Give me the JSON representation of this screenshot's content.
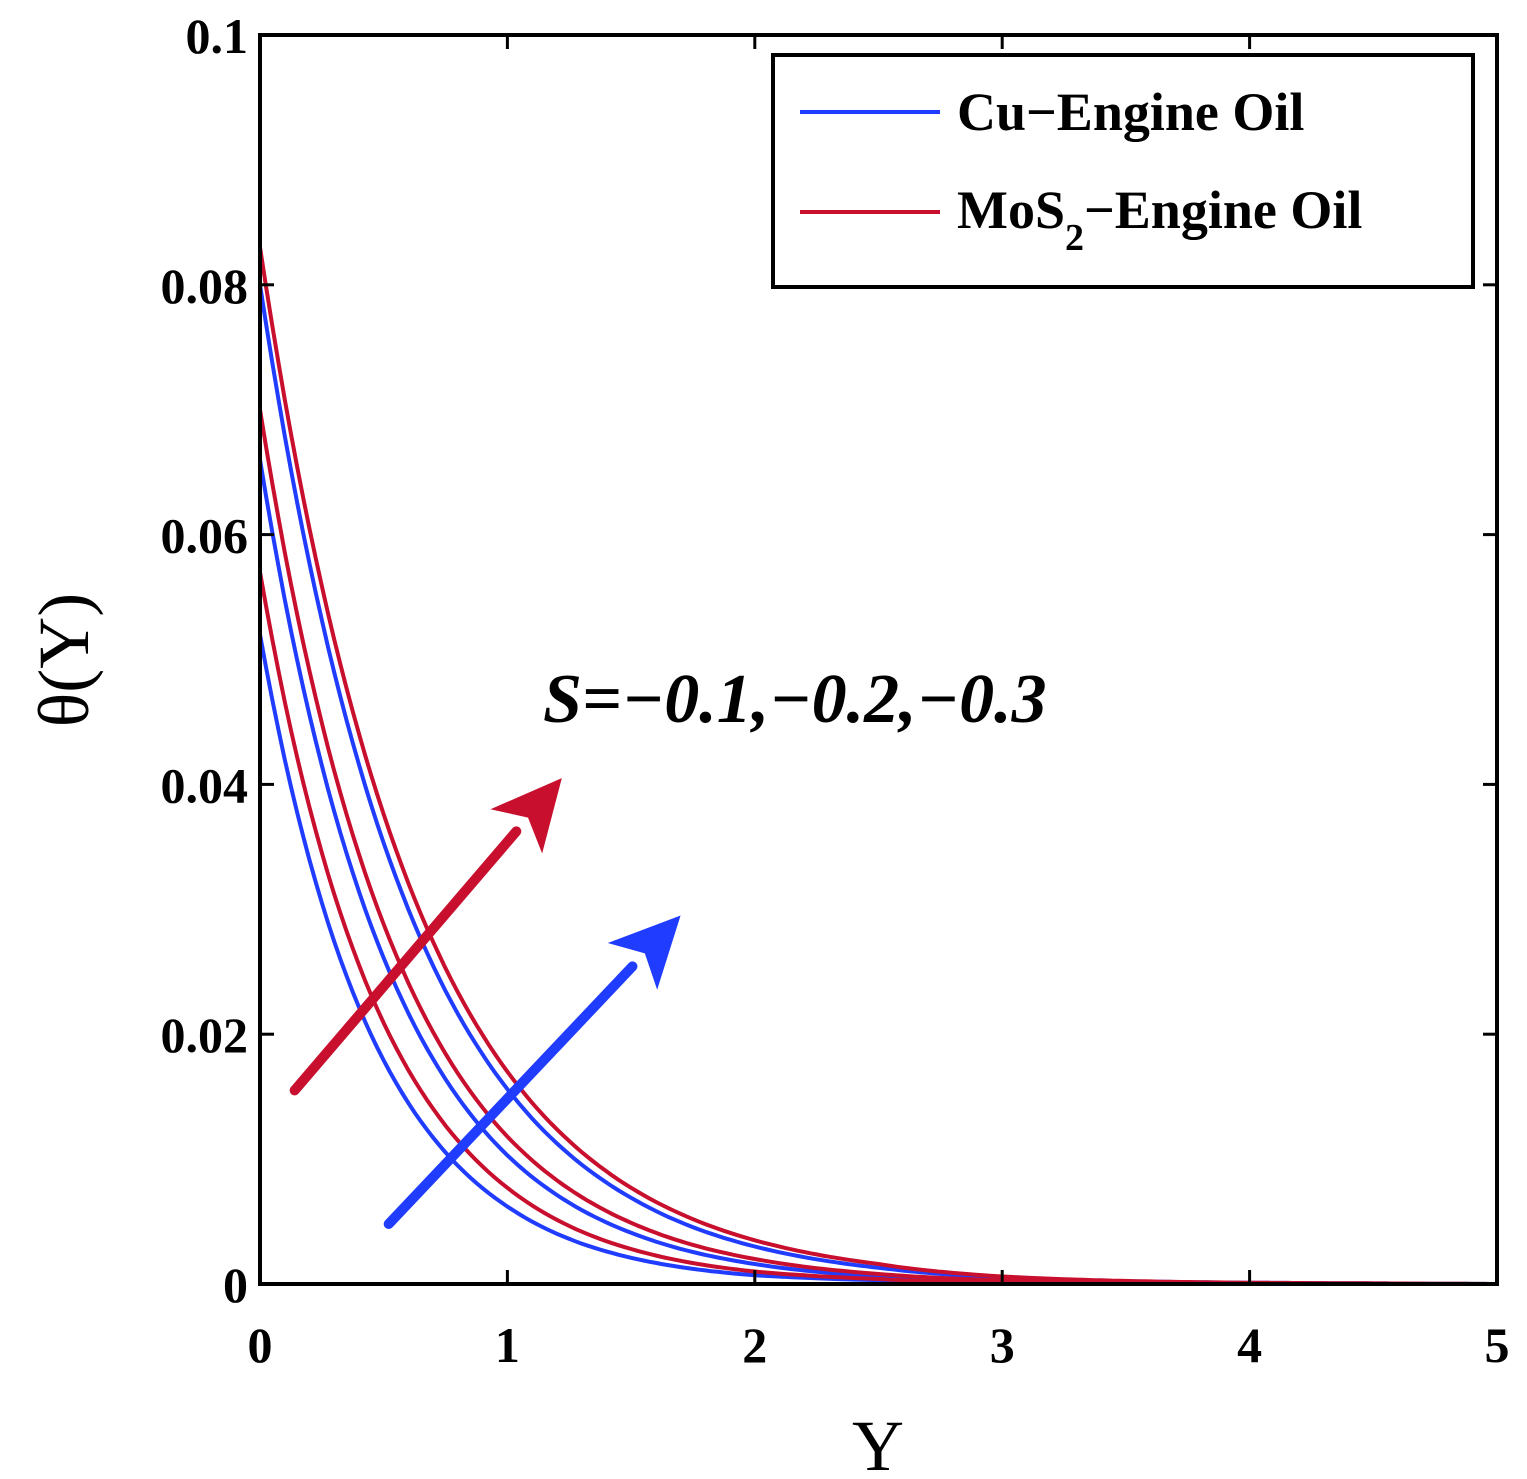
{
  "chart_data": {
    "type": "line",
    "xlabel": "Υ",
    "ylabel": "θ(Υ)",
    "xlim": [
      0,
      5
    ],
    "ylim": [
      0,
      0.1
    ],
    "x_ticks": [
      "0",
      "1",
      "2",
      "3",
      "4",
      "5"
    ],
    "y_ticks": [
      "0",
      "0.02",
      "0.04",
      "0.06",
      "0.08",
      "0.1"
    ],
    "legend": {
      "placement": "top-right",
      "entries": [
        {
          "label": "Cu−Engine Oil",
          "color": "#1f3cff"
        },
        {
          "label_main": "MoS",
          "label_sub": "2",
          "label_rest": "−Engine Oil",
          "color": "#c8102e"
        }
      ]
    },
    "annotation": "S=−0.1,−0.2,−0.3",
    "series": [
      {
        "group": "Cu−Engine Oil",
        "color": "#1f3cff",
        "points": [
          [
            0,
            0.052
          ],
          [
            0.5,
            0.0179
          ],
          [
            1,
            0.0062
          ],
          [
            1.5,
            0.0021
          ],
          [
            2,
            0.0007
          ],
          [
            2.5,
            0.0003
          ],
          [
            3,
            0.0001
          ],
          [
            4,
            0
          ],
          [
            5,
            0
          ]
        ]
      },
      {
        "group": "Cu−Engine Oil",
        "color": "#1f3cff",
        "points": [
          [
            0,
            0.066
          ],
          [
            0.5,
            0.0261
          ],
          [
            1,
            0.0103
          ],
          [
            1.5,
            0.0041
          ],
          [
            2,
            0.0016
          ],
          [
            2.5,
            0.0006
          ],
          [
            3,
            0.0002
          ],
          [
            4,
            0
          ],
          [
            5,
            0
          ]
        ]
      },
      {
        "group": "Cu−Engine Oil",
        "color": "#1f3cff",
        "points": [
          [
            0,
            0.08
          ],
          [
            0.5,
            0.0353
          ],
          [
            1,
            0.0156
          ],
          [
            1.5,
            0.0069
          ],
          [
            2,
            0.003
          ],
          [
            2.5,
            0.0013
          ],
          [
            3,
            0.0005
          ],
          [
            4,
            0.0001
          ],
          [
            5,
            0
          ]
        ]
      },
      {
        "group": "MoS2−Engine Oil",
        "color": "#c8102e",
        "points": [
          [
            0,
            0.057
          ],
          [
            0.5,
            0.0209
          ],
          [
            1,
            0.0077
          ],
          [
            1.5,
            0.0028
          ],
          [
            2,
            0.001
          ],
          [
            2.5,
            0.0004
          ],
          [
            3,
            0.0001
          ],
          [
            4,
            0
          ],
          [
            5,
            0
          ]
        ]
      },
      {
        "group": "MoS2−Engine Oil",
        "color": "#c8102e",
        "points": [
          [
            0,
            0.07
          ],
          [
            0.5,
            0.0288
          ],
          [
            1,
            0.0118
          ],
          [
            1.5,
            0.0049
          ],
          [
            2,
            0.002
          ],
          [
            2.5,
            0.0008
          ],
          [
            3,
            0.0003
          ],
          [
            4,
            0
          ],
          [
            5,
            0
          ]
        ]
      },
      {
        "group": "MoS2−Engine Oil",
        "color": "#c8102e",
        "points": [
          [
            0,
            0.083
          ],
          [
            0.5,
            0.0376
          ],
          [
            1,
            0.017
          ],
          [
            1.5,
            0.0077
          ],
          [
            2,
            0.0035
          ],
          [
            2.5,
            0.0016
          ],
          [
            3,
            0.0006
          ],
          [
            4,
            0.0001
          ],
          [
            5,
            0
          ]
        ]
      }
    ],
    "arrows": [
      {
        "color": "#c8102e",
        "from": [
          0.14,
          0.0155
        ],
        "to": [
          1.22,
          0.0405
        ]
      },
      {
        "color": "#1f3cff",
        "from": [
          0.52,
          0.0048
        ],
        "to": [
          1.7,
          0.0295
        ]
      }
    ],
    "grid": false
  }
}
